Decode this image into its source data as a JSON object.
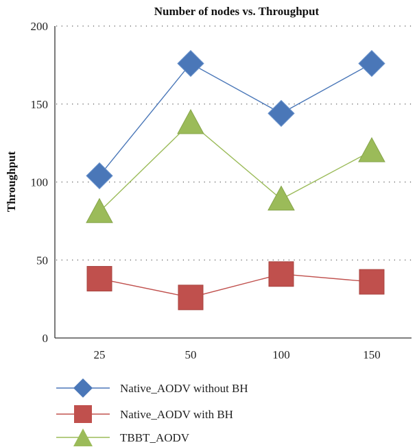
{
  "chart_data": {
    "type": "line",
    "title": "Number of nodes vs. Throughput",
    "xlabel": "",
    "ylabel": "Throughput",
    "categories": [
      "25",
      "50",
      "100",
      "150"
    ],
    "ylim": [
      0,
      200
    ],
    "yticks": [
      0,
      50,
      100,
      150,
      200
    ],
    "grid": "horizontal dotted",
    "legend_position": "bottom",
    "series": [
      {
        "name": "Native_AODV without BH",
        "values": [
          104,
          176,
          144,
          176
        ],
        "color": "#4a77b8",
        "marker": "diamond"
      },
      {
        "name": "Native_AODV with BH",
        "values": [
          38,
          26,
          41,
          36
        ],
        "color": "#c0504d",
        "marker": "square"
      },
      {
        "name": "TBBT_AODV",
        "values": [
          81,
          138,
          89,
          120
        ],
        "color": "#9bbb59",
        "marker": "triangle"
      }
    ]
  }
}
